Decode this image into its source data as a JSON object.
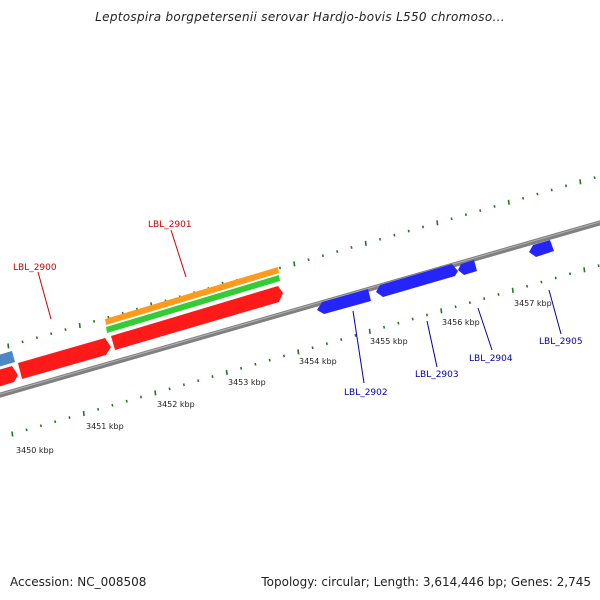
{
  "title": "Leptospira borgpetersenii serovar Hardjo-bovis L550 chromoso...",
  "footer": {
    "accession": "Accession: NC_008508",
    "summary": "Topology: circular; Length: 3,614,446 bp; Genes: 2,745"
  },
  "colors": {
    "backbone": "#808080",
    "tick": "#1f7a1f",
    "label_red": "#cc0000",
    "label_blue": "#0000aa",
    "red_gene": "#ff1a1a",
    "blue_gene": "#2424ff",
    "steelblue_gene": "#4f86c6",
    "orange_track": "#ff9a1a",
    "green_track": "#33cc33"
  },
  "scale_labels": [
    "3450 kbp",
    "3451 kbp",
    "3452 kbp",
    "3453 kbp",
    "3454 kbp",
    "3455 kbp",
    "3456 kbp",
    "3457 kbp"
  ],
  "gene_labels": [
    {
      "name": "LBL_2900",
      "color": "red"
    },
    {
      "name": "LBL_2901",
      "color": "red"
    },
    {
      "name": "LBL_2902",
      "color": "blue"
    },
    {
      "name": "LBL_2903",
      "color": "blue"
    },
    {
      "name": "LBL_2904",
      "color": "blue"
    },
    {
      "name": "LBL_2905",
      "color": "blue"
    }
  ]
}
